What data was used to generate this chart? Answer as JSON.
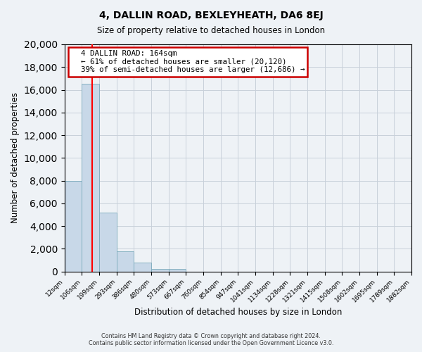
{
  "title": "4, DALLIN ROAD, BEXLEYHEATH, DA6 8EJ",
  "subtitle": "Size of property relative to detached houses in London",
  "xlabel": "Distribution of detached houses by size in London",
  "ylabel": "Number of detached properties",
  "bin_labels": [
    "12sqm",
    "106sqm",
    "199sqm",
    "293sqm",
    "386sqm",
    "480sqm",
    "573sqm",
    "667sqm",
    "760sqm",
    "854sqm",
    "947sqm",
    "1041sqm",
    "1134sqm",
    "1228sqm",
    "1321sqm",
    "1415sqm",
    "1508sqm",
    "1602sqm",
    "1695sqm",
    "1789sqm",
    "1882sqm"
  ],
  "bar_values": [
    8000,
    16500,
    5200,
    1750,
    750,
    250,
    200,
    0,
    0,
    0,
    0,
    0,
    0,
    0,
    0,
    0,
    0,
    0,
    0,
    0
  ],
  "bar_color": "#c8d8e8",
  "bar_edge_color": "#7aaabb",
  "vline_color": "red",
  "vline_x": 1.58,
  "annotation_title": "4 DALLIN ROAD: 164sqm",
  "annotation_line1": "← 61% of detached houses are smaller (20,120)",
  "annotation_line2": "39% of semi-detached houses are larger (12,686) →",
  "annotation_box_color": "white",
  "annotation_box_edge": "#cc0000",
  "ylim": [
    0,
    20000
  ],
  "yticks": [
    0,
    2000,
    4000,
    6000,
    8000,
    10000,
    12000,
    14000,
    16000,
    18000,
    20000
  ],
  "footer1": "Contains HM Land Registry data © Crown copyright and database right 2024.",
  "footer2": "Contains public sector information licensed under the Open Government Licence v3.0.",
  "bg_color": "#eef2f6",
  "grid_color": "#c8d0da"
}
